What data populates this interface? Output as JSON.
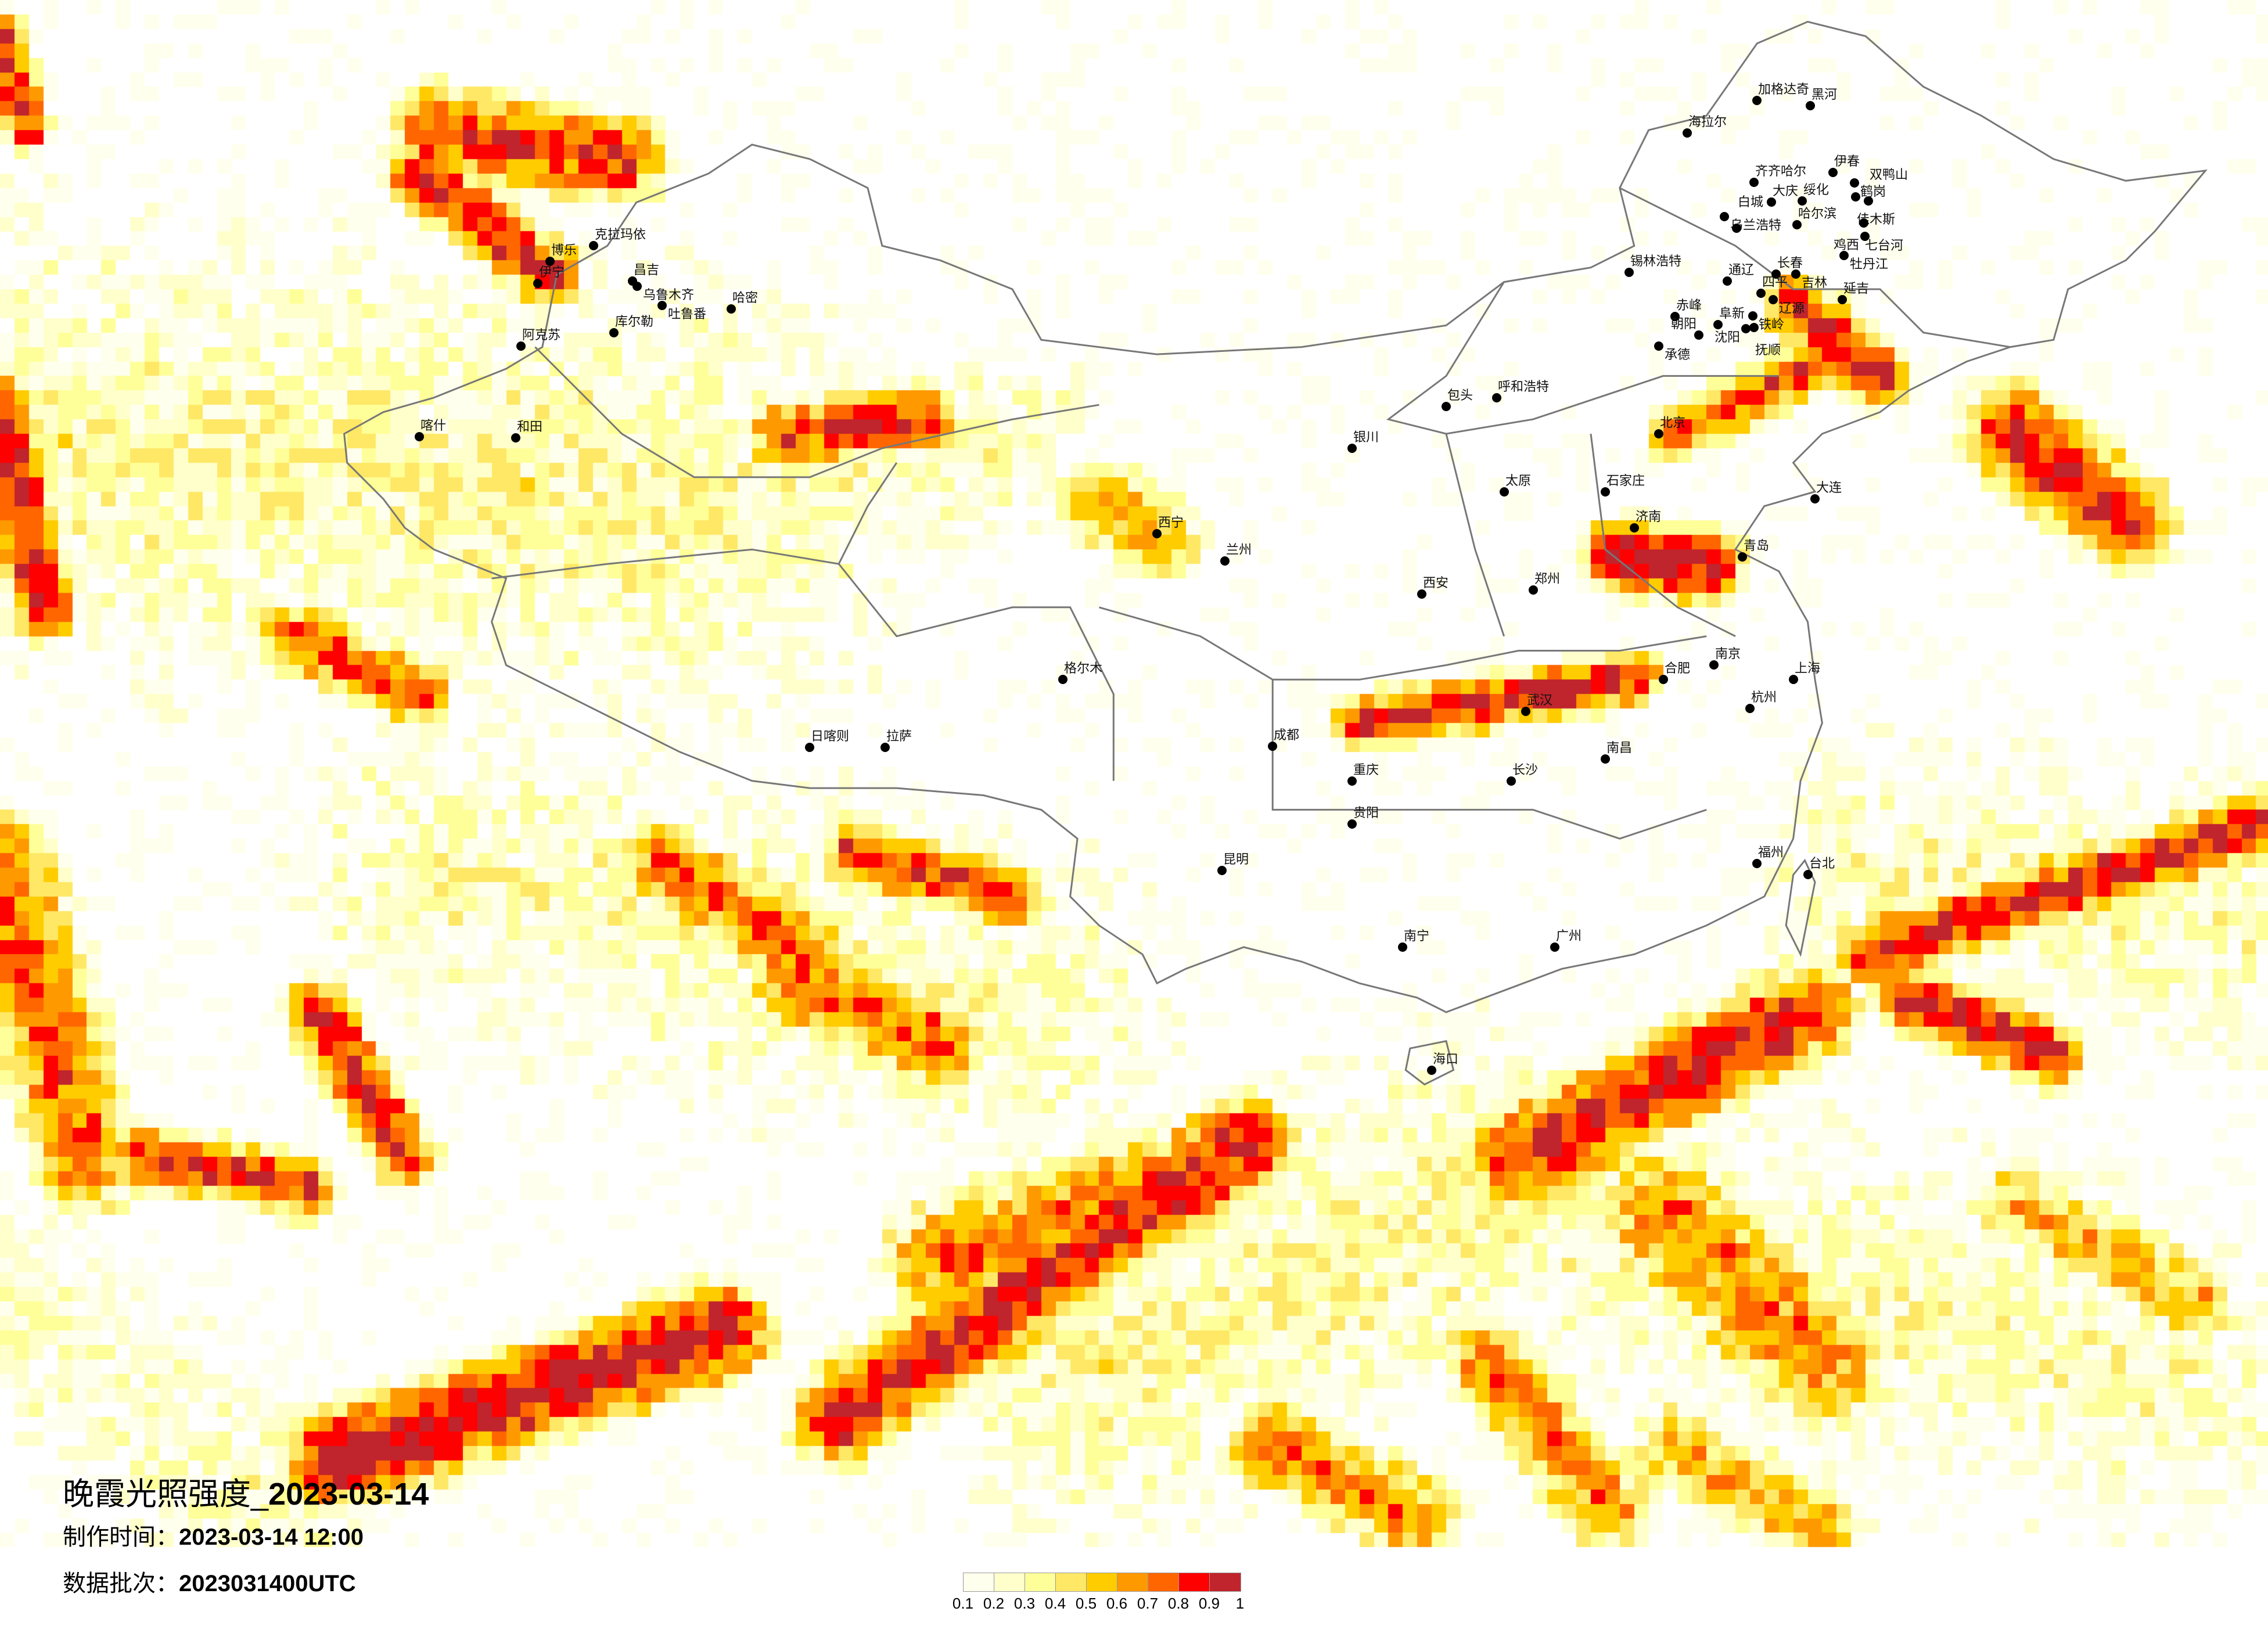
{
  "title": {
    "prefix": "晚霞光照强度_",
    "date": "2023-03-14"
  },
  "production_time": {
    "label": "制作时间：",
    "value": "2023-03-14 12:00"
  },
  "data_batch": {
    "label": "数据批次：",
    "value": "2023031400UTC"
  },
  "legend": {
    "labels": [
      "0.1",
      "0.2",
      "0.3",
      "0.4",
      "0.5",
      "0.6",
      "0.7",
      "0.8",
      "0.9",
      "1"
    ],
    "colors": [
      "#FFFFEE",
      "#FFFFCC",
      "#FFFF99",
      "#FFE866",
      "#FFCC00",
      "#FF9900",
      "#FF6600",
      "#FF0000",
      "#C0242C"
    ]
  },
  "border_color": "#777777",
  "cities": [
    "克拉玛依",
    "博乐",
    "伊宁",
    "昌吉",
    "乌鲁木齐",
    "吐鲁番",
    "哈密",
    "库尔勒",
    "阿克苏",
    "和田",
    "喀什",
    "加格达奇",
    "黑河",
    "海拉尔",
    "齐齐哈尔",
    "大庆",
    "绥化",
    "伊春",
    "鹤岗",
    "佳木斯",
    "双鸭山",
    "哈尔滨",
    "乌兰浩特",
    "白城",
    "七台河",
    "鸡西",
    "牡丹江",
    "长春",
    "吉林",
    "四平",
    "辽源",
    "延吉",
    "通辽",
    "赤峰",
    "锡林浩特",
    "阜新",
    "铁岭",
    "沈阳",
    "抚顺",
    "朝阳",
    "承德",
    "拉萨",
    "日喀则",
    "西宁",
    "兰州",
    "北京",
    "上海",
    "成都",
    "重庆",
    "昆明",
    "广州",
    "武汉",
    "西安",
    "郑州",
    "济南",
    "南京",
    "杭州",
    "福州",
    "长沙",
    "南宁",
    "贵阳",
    "海口",
    "太原",
    "石家庄",
    "呼和浩特",
    "银川",
    "台北",
    "格尔木",
    "包头",
    "大连",
    "青岛",
    "南昌",
    "合肥"
  ]
}
